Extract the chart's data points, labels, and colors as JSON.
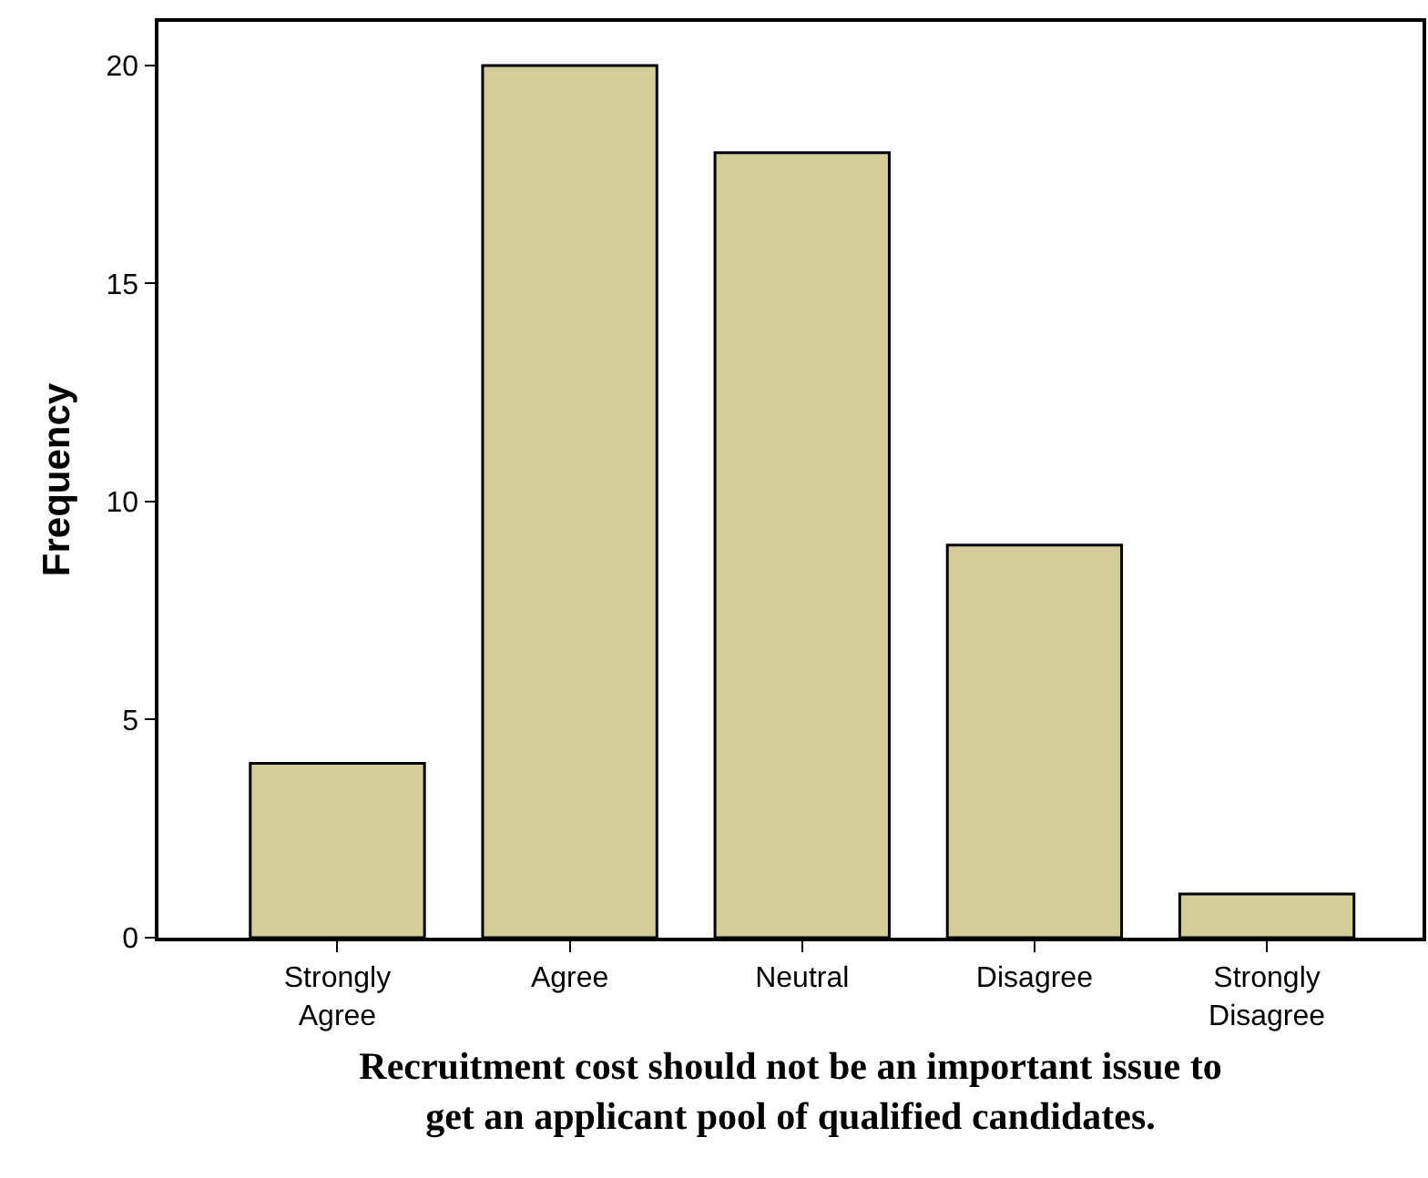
{
  "chart_data": {
    "type": "bar",
    "categories": [
      "Strongly Agree",
      "Agree",
      "Neutral",
      "Disagree",
      "Strongly Disagree"
    ],
    "values": [
      4,
      20,
      18,
      9,
      1
    ],
    "color": "#d3cd98",
    "ylabel": "Frequency",
    "xlabel": "Recruitment cost should not be an important issue to get an applicant pool of qualified candidates.",
    "ylim": [
      0,
      21
    ],
    "yticks": [
      0,
      5,
      10,
      15,
      20
    ]
  }
}
